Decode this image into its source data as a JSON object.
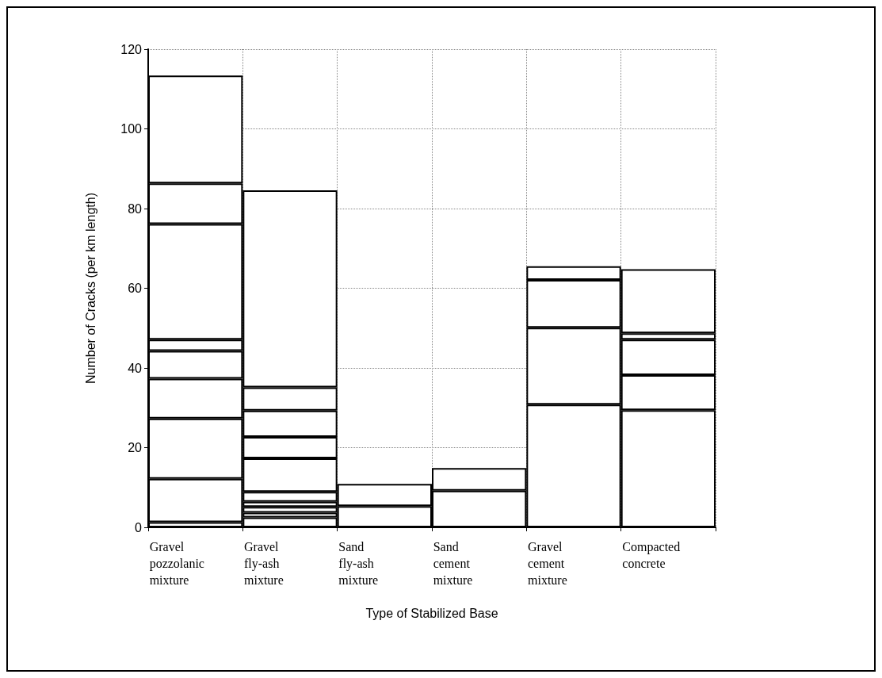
{
  "chart_data": {
    "type": "bar",
    "stacked": true,
    "xlabel": "Type of Stabilized Base",
    "ylabel": "Number of Cracks (per km length)",
    "categories": [
      "Gravel\npozzolanic\nmixture",
      "Gravel\nfly-ash\nmixture",
      "Sand\nfly-ash\nmixture",
      "Sand\ncement\nmixture",
      "Gravel\ncement\nmixture",
      "Compacted\nconcrete"
    ],
    "series": [
      {
        "color": "#ffffff",
        "values": [
          1.3,
          2.5,
          5.3,
          9.2,
          30.8,
          29.4
        ]
      },
      {
        "color": "#ffffff",
        "values": [
          10.9,
          1.2,
          5.6,
          5.7,
          19.3,
          8.8
        ]
      },
      {
        "color": "#ffffff",
        "values": [
          15.1,
          1.4,
          null,
          null,
          12.0,
          8.9
        ]
      },
      {
        "color": "#ffffff",
        "values": [
          10.0,
          1.3,
          null,
          null,
          3.4,
          1.6
        ]
      },
      {
        "color": "#ffffff",
        "values": [
          7.0,
          2.5,
          null,
          null,
          null,
          16.1
        ]
      },
      {
        "color": "#ffffff",
        "values": [
          2.8,
          8.4,
          null,
          null,
          null,
          null
        ]
      },
      {
        "color": "#ffffff",
        "values": [
          29.0,
          5.4,
          null,
          null,
          null,
          null
        ]
      },
      {
        "color": "#ffffff",
        "values": [
          10.2,
          6.6,
          null,
          null,
          null,
          null
        ]
      },
      {
        "color": "#ffffff",
        "values": [
          27.1,
          5.8,
          null,
          null,
          null,
          null
        ]
      },
      {
        "color": "#ffffff",
        "values": [
          null,
          49.5,
          null,
          null,
          null,
          null
        ]
      }
    ],
    "ylim": [
      0,
      120
    ],
    "yticks": [
      0,
      20,
      40,
      60,
      80,
      100,
      120
    ],
    "grid": true
  }
}
